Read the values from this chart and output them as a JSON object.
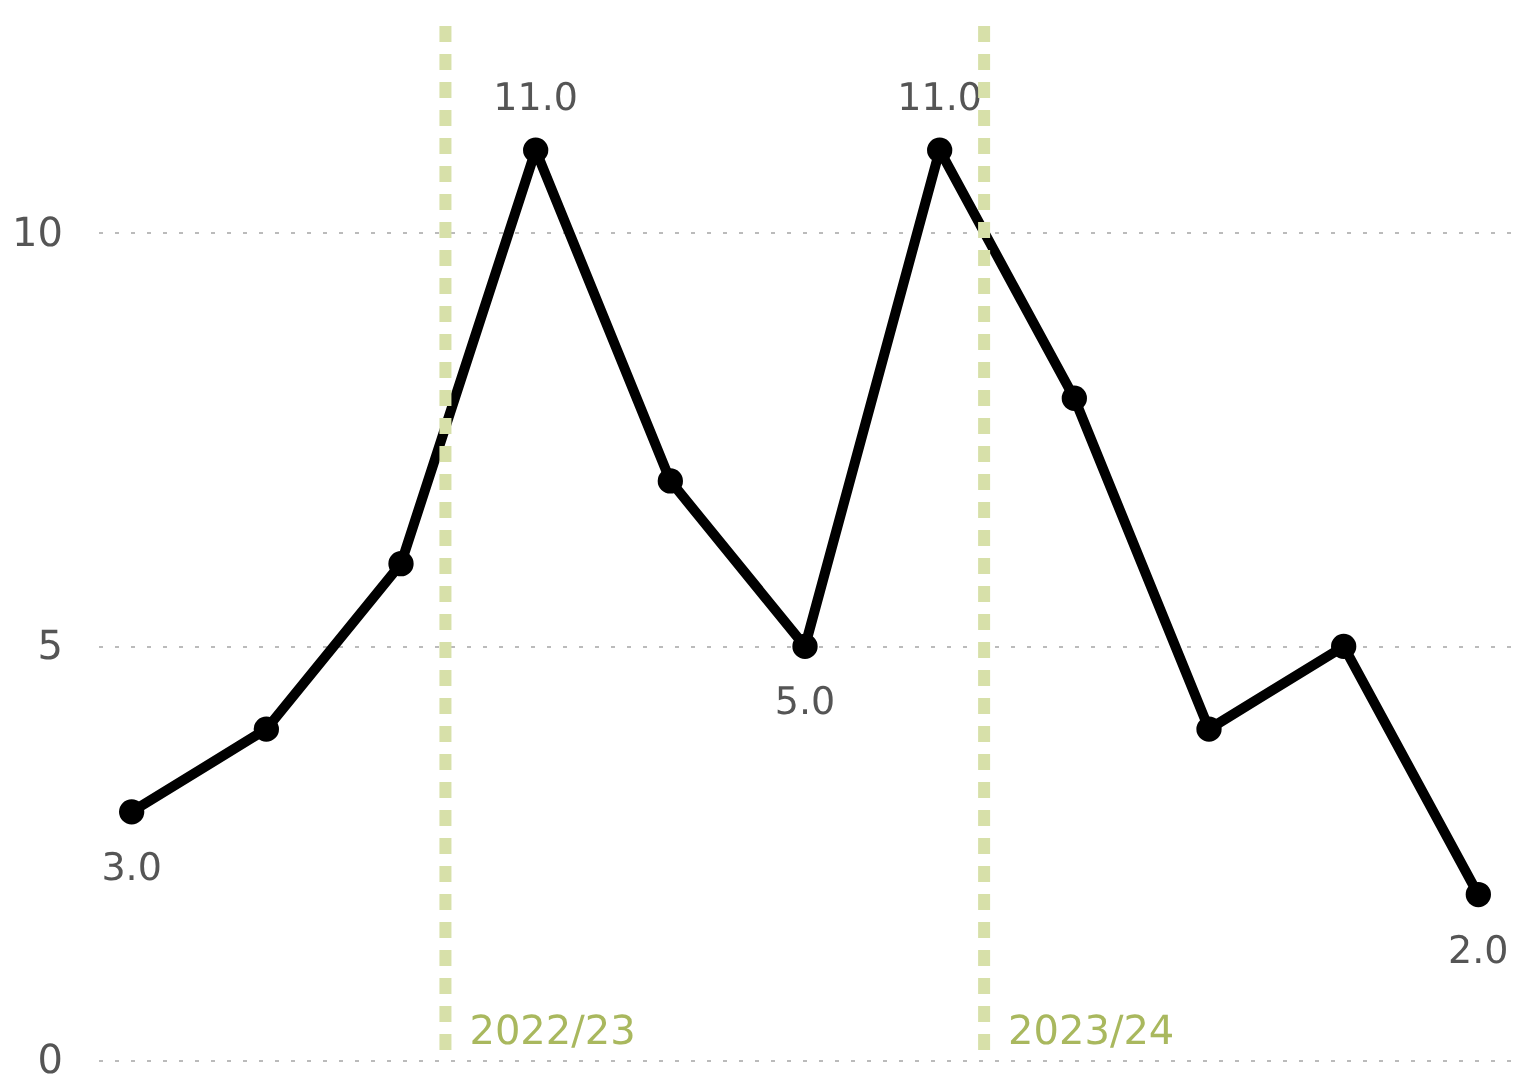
{
  "chart_data": {
    "type": "line",
    "categories": [
      null,
      null,
      null,
      null,
      null,
      null,
      null,
      null,
      null,
      null,
      null
    ],
    "series": [
      {
        "color": "#000000",
        "values": [
          3,
          4,
          6,
          11,
          7,
          5,
          11,
          8,
          4,
          5,
          2
        ],
        "value_labels": [
          "3.0",
          null,
          null,
          "11.0",
          null,
          "5.0",
          "11.0",
          null,
          null,
          null,
          "2.0"
        ]
      }
    ],
    "ylim": [
      0,
      12.5
    ],
    "yticks": [
      0,
      5,
      10
    ],
    "tick_labels": "y",
    "grid": "y",
    "marker": "circle",
    "line_style": "solid",
    "annotations": [
      "2022/23",
      "2023/24"
    ]
  }
}
